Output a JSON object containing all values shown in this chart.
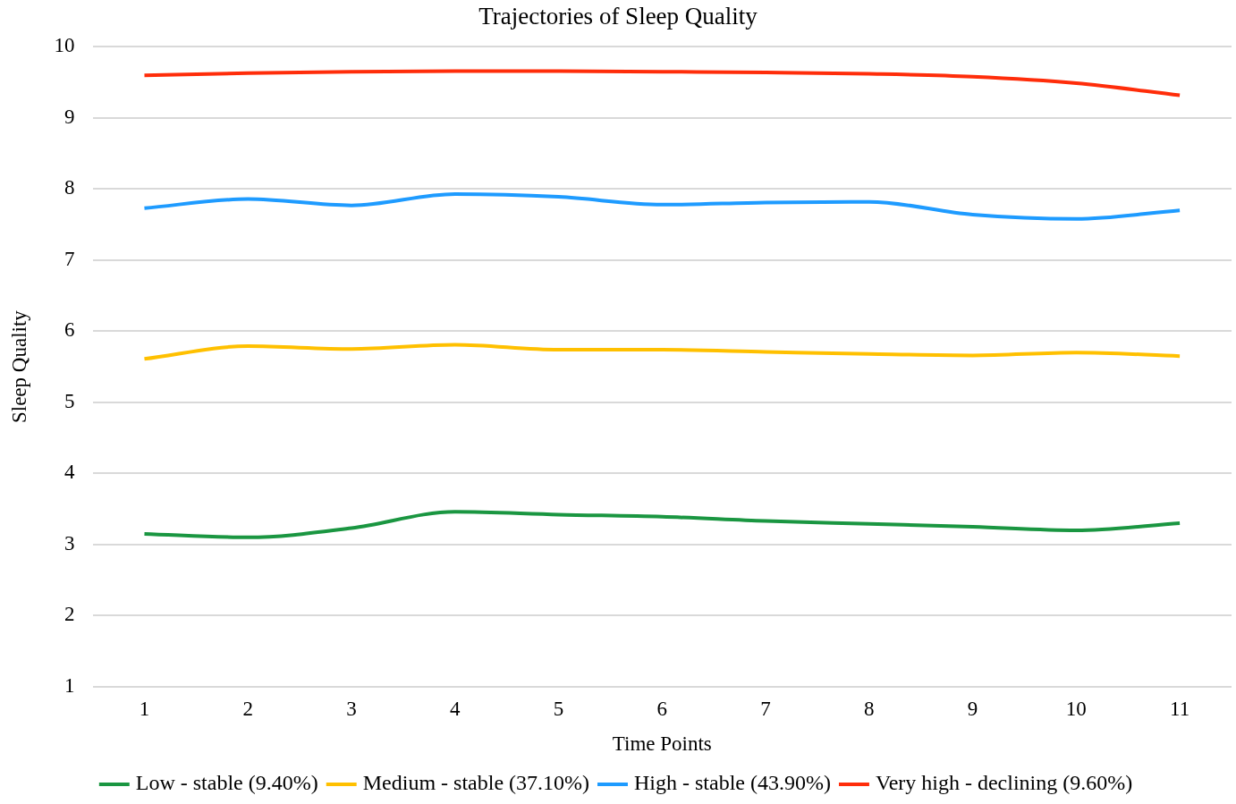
{
  "chart_data": {
    "type": "line",
    "title": "Trajectories of Sleep Quality",
    "xlabel": "Time Points",
    "ylabel": "Sleep Quality",
    "categories": [
      "1",
      "2",
      "3",
      "4",
      "5",
      "6",
      "7",
      "8",
      "9",
      "10",
      "11"
    ],
    "series": [
      {
        "name": "Low - stable (9.40%)",
        "color": "#1a9641",
        "values": [
          3.15,
          3.1,
          3.23,
          3.46,
          3.42,
          3.39,
          3.33,
          3.29,
          3.25,
          3.2,
          3.3
        ]
      },
      {
        "name": "Medium - stable (37.10%)",
        "color": "#ffc000",
        "values": [
          5.61,
          5.79,
          5.75,
          5.81,
          5.74,
          5.74,
          5.71,
          5.68,
          5.66,
          5.7,
          5.65
        ]
      },
      {
        "name": "High - stable (43.90%)",
        "color": "#1e9bff",
        "values": [
          7.73,
          7.86,
          7.77,
          7.93,
          7.89,
          7.78,
          7.81,
          7.82,
          7.64,
          7.58,
          7.7
        ]
      },
      {
        "name": "Very high - declining (9.60%)",
        "color": "#ff2d0a",
        "values": [
          9.6,
          9.63,
          9.65,
          9.66,
          9.66,
          9.65,
          9.64,
          9.62,
          9.58,
          9.49,
          9.32
        ]
      }
    ],
    "ylim": [
      1,
      10
    ],
    "yticks": [
      1,
      2,
      3,
      4,
      5,
      6,
      7,
      8,
      9,
      10
    ],
    "grid": "y",
    "legend": "bottom",
    "marker": "none",
    "line_style": "solid"
  }
}
